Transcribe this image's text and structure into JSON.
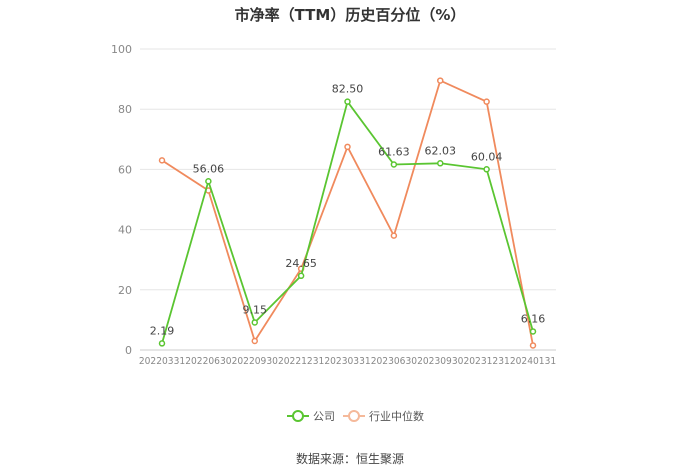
{
  "chart_data": {
    "type": "line",
    "title": "市净率（TTM）历史百分位（%）",
    "categories": [
      "20220331",
      "20220630",
      "20220930",
      "20221231",
      "20230331",
      "20230630",
      "20230930",
      "20231231",
      "20240131"
    ],
    "series": [
      {
        "name": "公司",
        "values": [
          2.19,
          56.06,
          9.15,
          24.65,
          82.5,
          61.63,
          62.03,
          60.04,
          6.16
        ],
        "labels": [
          "2.19",
          "56.06",
          "9.15",
          "24.65",
          "82.50",
          "61.63",
          "62.03",
          "60.04",
          "6.16"
        ],
        "color": "#5ac531"
      },
      {
        "name": "行业中位数",
        "values": [
          63,
          53,
          3,
          27,
          67.5,
          38,
          89.5,
          82.5,
          1.5
        ],
        "color": "#f08a5d"
      }
    ],
    "ylim": [
      0,
      100
    ],
    "yticks": [
      "0",
      "20",
      "40",
      "60",
      "80",
      "100"
    ],
    "grid": true,
    "legend_position": "bottom"
  },
  "source": "数据来源：恒生聚源"
}
